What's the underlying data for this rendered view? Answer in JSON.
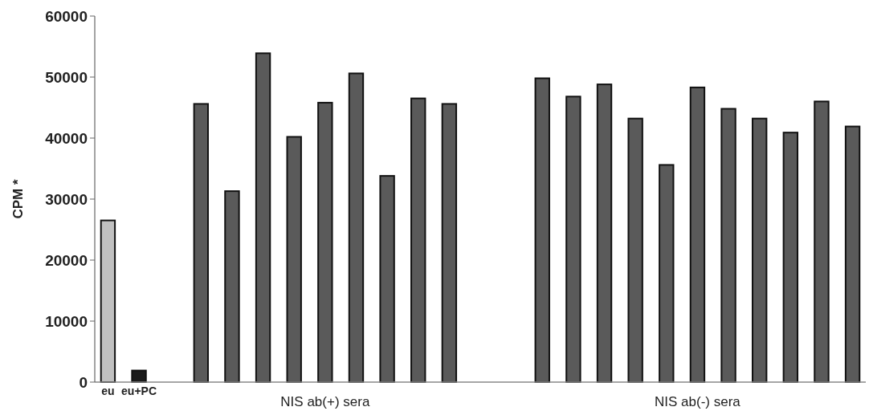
{
  "chart_data": {
    "type": "bar",
    "ylabel": "CPM *",
    "categories": [
      "eu",
      "eu+PC",
      null,
      null,
      null,
      null,
      null,
      null,
      null,
      null,
      null,
      null,
      null,
      null,
      null,
      null,
      null,
      null,
      null,
      null,
      null,
      null,
      null,
      null,
      null
    ],
    "values": [
      26500,
      1900,
      null,
      45600,
      31300,
      53900,
      40200,
      45800,
      50600,
      33800,
      46500,
      45600,
      null,
      null,
      49800,
      46800,
      48800,
      43200,
      35600,
      48300,
      44800,
      43200,
      40900,
      46000,
      41900
    ],
    "colors": [
      "#c0c0c0",
      "#1a1a1a",
      null,
      "#5a5a5a",
      "#5a5a5a",
      "#5a5a5a",
      "#5a5a5a",
      "#5a5a5a",
      "#5a5a5a",
      "#5a5a5a",
      "#5a5a5a",
      "#5a5a5a",
      null,
      null,
      "#5a5a5a",
      "#5a5a5a",
      "#5a5a5a",
      "#5a5a5a",
      "#5a5a5a",
      "#5a5a5a",
      "#5a5a5a",
      "#5a5a5a",
      "#5a5a5a",
      "#5a5a5a",
      "#5a5a5a"
    ],
    "ylim": [
      0,
      60000
    ],
    "yticks": [
      0,
      10000,
      20000,
      30000,
      40000,
      50000,
      60000
    ],
    "grid": false,
    "annotations": [
      "NIS ab(+) sera",
      "NIS ab(-) sera"
    ]
  }
}
